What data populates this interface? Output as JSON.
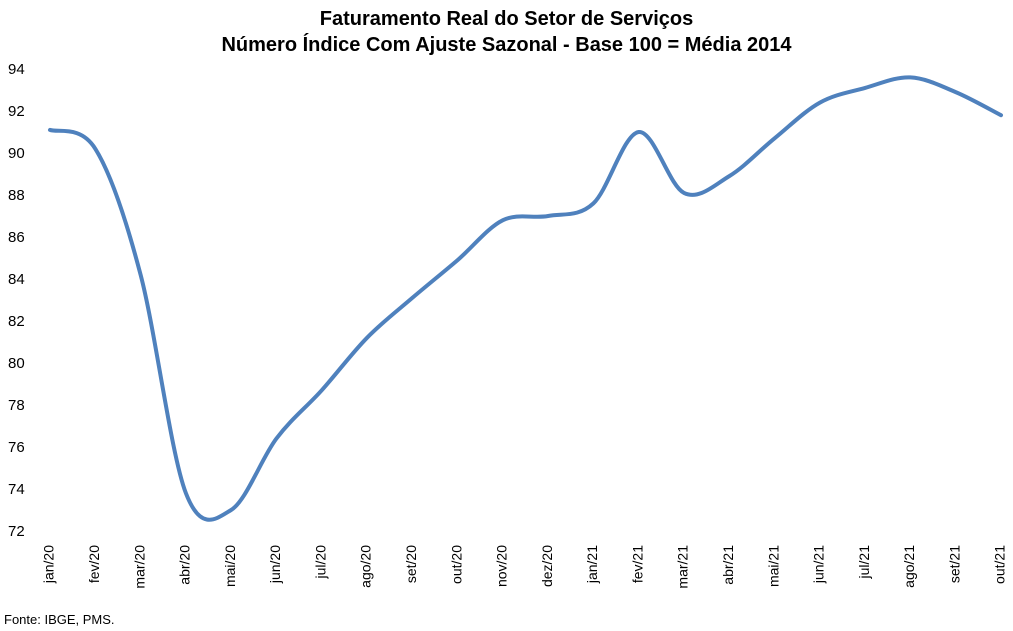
{
  "chart_data": {
    "type": "line",
    "title": "Faturamento Real do Setor de Serviços",
    "subtitle": "Número Índice Com Ajuste Sazonal - Base 100 = Média 2014",
    "xlabel": "",
    "ylabel": "",
    "ylim": [
      72,
      94
    ],
    "yticks": [
      72,
      74,
      76,
      78,
      80,
      82,
      84,
      86,
      88,
      90,
      92,
      94
    ],
    "grid": false,
    "legend": "none",
    "line_color": "#4f81bd",
    "categories": [
      "jan/20",
      "fev/20",
      "mar/20",
      "abr/20",
      "mai/20",
      "jun/20",
      "jul/20",
      "ago/20",
      "set/20",
      "out/20",
      "nov/20",
      "dez/20",
      "jan/21",
      "fev/21",
      "mar/21",
      "abr/21",
      "mai/21",
      "jun/21",
      "jul/21",
      "ago/21",
      "set/21",
      "out/21"
    ],
    "series": [
      {
        "values": [
          91.1,
          90.2,
          84.2,
          73.8,
          73.0,
          76.4,
          78.7,
          81.2,
          83.1,
          84.9,
          86.8,
          87.0,
          87.6,
          91.0,
          88.1,
          88.9,
          90.7,
          92.4,
          93.1,
          93.6,
          92.9,
          91.8
        ]
      }
    ]
  },
  "source_note": "Fonte: IBGE, PMS."
}
